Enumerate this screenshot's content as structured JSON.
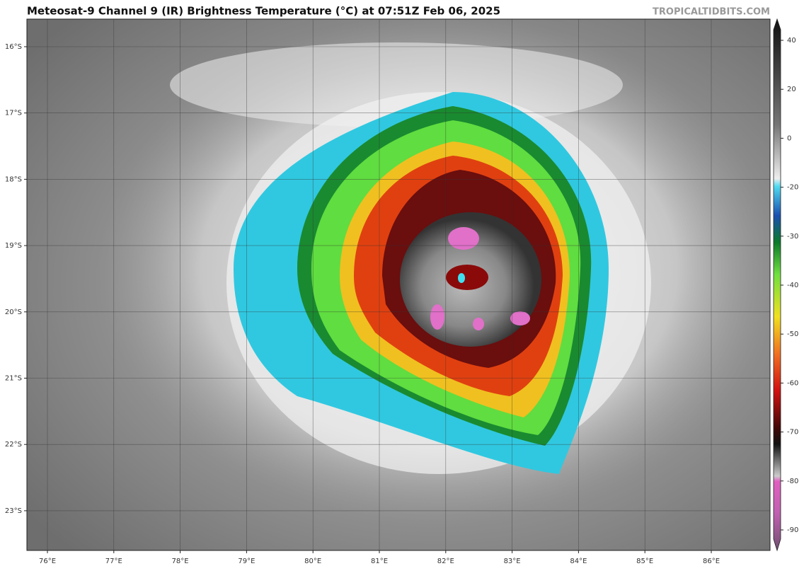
{
  "header": {
    "title": "Meteosat-9 Channel 9 (IR) Brightness Temperature (°C) at 07:51Z Feb 06, 2025",
    "credit": "TROPICALTIDBITS.COM"
  },
  "map": {
    "lat_labels": [
      "16°S",
      "17°S",
      "18°S",
      "19°S",
      "20°S",
      "21°S",
      "22°S",
      "23°S"
    ],
    "lon_labels": [
      "76°E",
      "77°E",
      "78°E",
      "79°E",
      "80°E",
      "81°E",
      "82°E",
      "83°E",
      "84°E",
      "85°E",
      "86°E"
    ]
  },
  "colorbar": {
    "ticks": [
      40,
      20,
      0,
      -20,
      -30,
      -40,
      -50,
      -60,
      -70,
      -80,
      -90
    ]
  }
}
